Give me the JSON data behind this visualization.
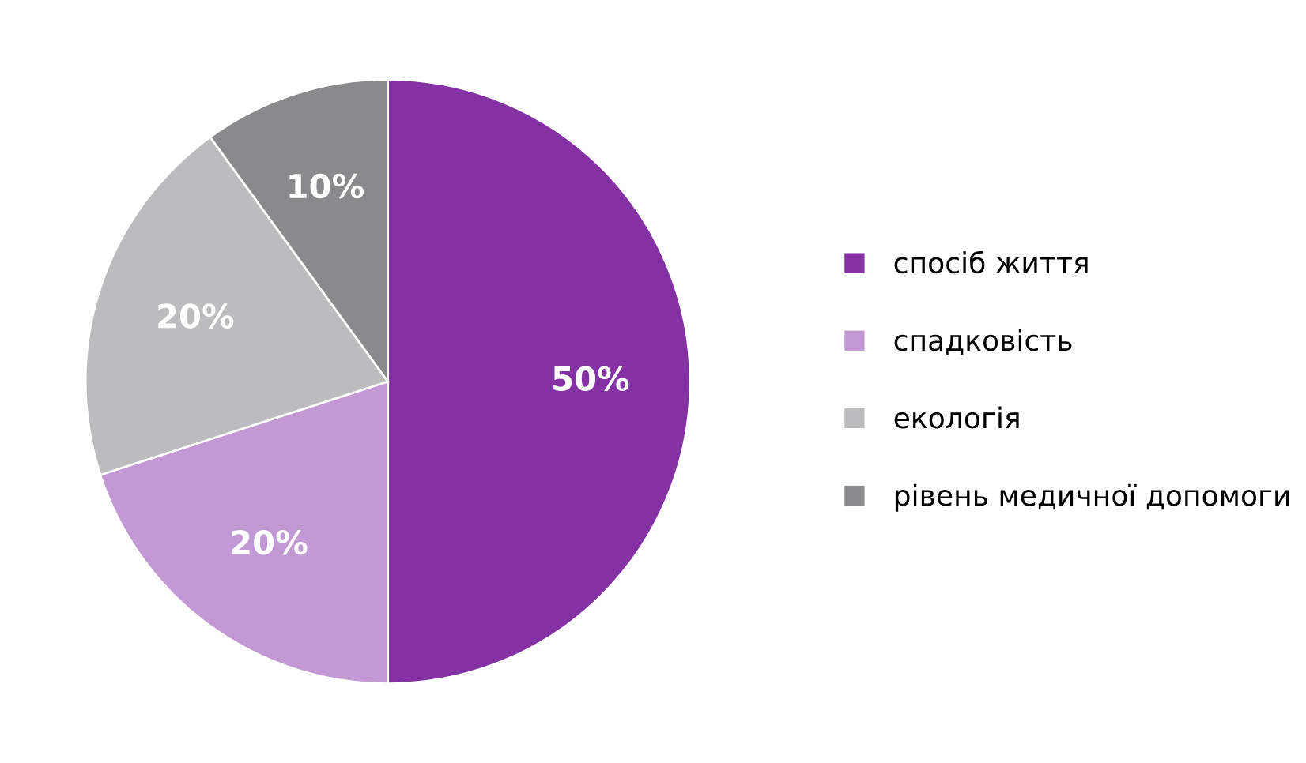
{
  "chart_data": {
    "type": "pie",
    "categories": [
      "спосіб життя",
      "спадковість",
      "екологія",
      "рівень медичної допомоги"
    ],
    "values": [
      50,
      20,
      20,
      10
    ],
    "value_labels": [
      "50%",
      "20%",
      "20%",
      "10%"
    ],
    "colors": [
      "#8331a3",
      "#c299d4",
      "#bcbcbe",
      "#8a8a8c"
    ],
    "legend": "right"
  }
}
